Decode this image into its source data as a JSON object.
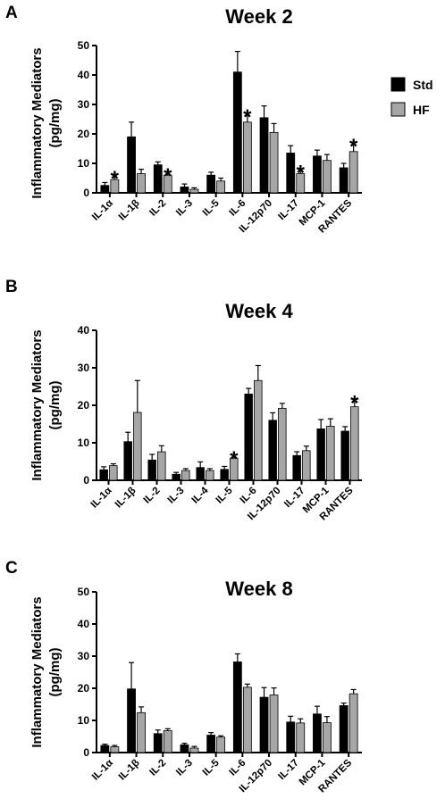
{
  "colors": {
    "std": "#000000",
    "hf": "#a6a6a6",
    "axis": "#000000",
    "error": "#000000"
  },
  "legend": [
    {
      "name": "Std",
      "color": "#000000"
    },
    {
      "name": "HF",
      "color": "#a6a6a6"
    }
  ],
  "chart_data": [
    {
      "type": "bar",
      "panel": "A",
      "title": "Week 2",
      "ylabel": "Inflammatory Mediators (pg/mg)",
      "ylabel_lines": [
        "Inflammatory Mediators",
        "(pg/mg)"
      ],
      "ylim": [
        0,
        50
      ],
      "yticks": [
        0,
        10,
        20,
        30,
        40,
        50
      ],
      "categories": [
        "IL-1α",
        "IL-1β",
        "IL-2",
        "IL-3",
        "IL-5",
        "IL-6",
        "IL-12p70",
        "IL-17",
        "MCP-1",
        "RANTES"
      ],
      "series": [
        {
          "name": "Std",
          "values": [
            2.5,
            19,
            9.5,
            2,
            6,
            41,
            25.5,
            13.5,
            12.5,
            8.5
          ],
          "errors": [
            1,
            5,
            1,
            1,
            1,
            7,
            4,
            2.5,
            2,
            1.5
          ]
        },
        {
          "name": "HF",
          "values": [
            4.5,
            6.5,
            6,
            1.2,
            4,
            24,
            20.5,
            6.5,
            11,
            14
          ],
          "errors": [
            1.5,
            1.5,
            1,
            0.5,
            1,
            3,
            3,
            1.5,
            2,
            3
          ]
        }
      ],
      "significance": [
        0,
        2,
        5,
        7,
        9
      ],
      "legend": "top-right",
      "grid": false
    },
    {
      "type": "bar",
      "panel": "B",
      "title": "Week 4",
      "ylabel": "Inflammatory Mediators (pg/mg)",
      "ylabel_lines": [
        "Inflammatory Mediators",
        "(pg/mg)"
      ],
      "ylim": [
        0,
        40
      ],
      "yticks": [
        0,
        10,
        20,
        30,
        40
      ],
      "categories": [
        "IL-1α",
        "IL-1β",
        "IL-2",
        "IL-3",
        "IL-4",
        "IL-5",
        "IL-6",
        "IL-12p70",
        "IL-17",
        "MCP-1",
        "RANTES"
      ],
      "series": [
        {
          "name": "Std",
          "values": [
            2.8,
            10.3,
            5.4,
            1.6,
            3.4,
            2.9,
            23,
            16,
            6.6,
            13.7,
            13.1
          ],
          "errors": [
            0.8,
            2.5,
            1.5,
            0.5,
            1.5,
            0.8,
            1.5,
            2,
            1,
            2.5,
            1.2
          ]
        },
        {
          "name": "HF",
          "values": [
            3.9,
            18.1,
            7.6,
            2.6,
            2.6,
            5.9,
            26.6,
            19.2,
            7.9,
            14.4,
            19.6
          ],
          "errors": [
            0.5,
            8.5,
            1.6,
            0.5,
            0.5,
            0.8,
            4,
            1.3,
            1.2,
            2,
            2
          ]
        }
      ],
      "significance": [
        5,
        10
      ],
      "legend": "none",
      "grid": false
    },
    {
      "type": "bar",
      "panel": "C",
      "title": "Week 8",
      "ylabel": "Inflammatory Mediators (pg/mg)",
      "ylabel_lines": [
        "Inflammatory Mediators",
        "(pg/mg)"
      ],
      "ylim": [
        0,
        50
      ],
      "yticks": [
        0,
        10,
        20,
        30,
        40,
        50
      ],
      "categories": [
        "IL-1α",
        "IL-1β",
        "IL-2",
        "IL-3",
        "IL-5",
        "IL-6",
        "IL-12p70",
        "IL-17",
        "MCP-1",
        "RANTES"
      ],
      "series": [
        {
          "name": "Std",
          "values": [
            2.2,
            19.8,
            5.9,
            2.4,
            5.4,
            28.2,
            17.2,
            9.5,
            12,
            14.6
          ],
          "errors": [
            0.4,
            8.2,
            1.1,
            0.5,
            0.8,
            2.5,
            3,
            1.8,
            2.4,
            0.8
          ]
        },
        {
          "name": "HF",
          "values": [
            1.8,
            12.4,
            6.8,
            1.4,
            4.8,
            20.3,
            17.9,
            9.2,
            9.3,
            18.3
          ],
          "errors": [
            0.4,
            1.8,
            0.6,
            0.5,
            0.4,
            1,
            2.2,
            1.3,
            1.9,
            1.3
          ]
        }
      ],
      "significance": [],
      "legend": "none",
      "grid": false
    }
  ]
}
